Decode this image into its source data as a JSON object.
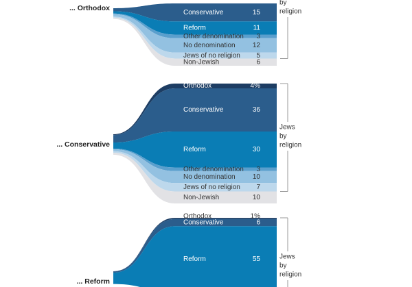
{
  "chart_data": {
    "type": "sankey",
    "groups": [
      {
        "source": "... Orthodox",
        "bracket_label": [
          "by",
          "religion"
        ],
        "flows": [
          {
            "name": "Conservative",
            "value": 15,
            "color": "#2b5d8c"
          },
          {
            "name": "Reform",
            "value": 11,
            "color": "#0a7db5"
          },
          {
            "name": "Other denomination",
            "value": 3,
            "color": "#5a9fcd"
          },
          {
            "name": "No denomination",
            "value": 12,
            "color": "#93c1e1"
          },
          {
            "name": "Jews of no religion",
            "value": 5,
            "color": "#bdd8ec"
          },
          {
            "name": "Non-Jewish",
            "value": 6,
            "color": "#e2e2e5"
          }
        ]
      },
      {
        "source": "... Conservative",
        "bracket_label": [
          "Jews",
          "by",
          "religion"
        ],
        "flows": [
          {
            "name": "Orthodox",
            "value": 4,
            "value_label": "4%",
            "color": "#1d3d63"
          },
          {
            "name": "Conservative",
            "value": 36,
            "color": "#2b5d8c"
          },
          {
            "name": "Reform",
            "value": 30,
            "color": "#0a7db5"
          },
          {
            "name": "Other denomination",
            "value": 3,
            "color": "#5a9fcd"
          },
          {
            "name": "No denomination",
            "value": 10,
            "color": "#93c1e1"
          },
          {
            "name": "Jews of no religion",
            "value": 7,
            "color": "#bdd8ec"
          },
          {
            "name": "Non-Jewish",
            "value": 10,
            "color": "#e2e2e5"
          }
        ]
      },
      {
        "source": "... Reform",
        "bracket_label": [
          "Jews",
          "by",
          "religion"
        ],
        "flows": [
          {
            "name": "Orthodox",
            "value": 1,
            "value_label": "1%",
            "color": "#1d3d63"
          },
          {
            "name": "Conservative",
            "value": 6,
            "color": "#2b5d8c"
          },
          {
            "name": "Reform",
            "value": 55,
            "color": "#0a7db5"
          }
        ]
      }
    ]
  }
}
